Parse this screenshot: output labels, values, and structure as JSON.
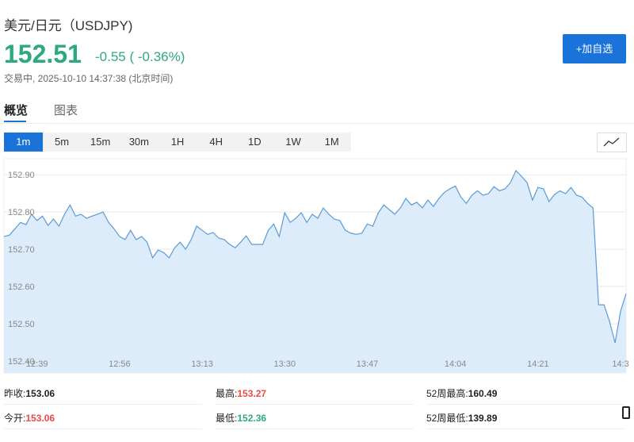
{
  "header": {
    "title": "美元/日元（USDJPY)",
    "price": "152.51",
    "change": "-0.55 ( -0.36%)",
    "status": "交易中, 2025-10-10 14:37:38 (北京时间)",
    "button": "+加自选"
  },
  "tabs": [
    "概览",
    "图表"
  ],
  "intervals": [
    "1m",
    "5m",
    "15m",
    "30m",
    "1H",
    "4H",
    "1D",
    "1W",
    "1M"
  ],
  "stats": [
    [
      {
        "label": "昨收:",
        "value": "153.06"
      },
      {
        "label": "最高:",
        "value": "153.27"
      },
      {
        "label": "52周最高:",
        "value": "160.49"
      }
    ],
    [
      {
        "label": "今开:",
        "value": "153.06"
      },
      {
        "label": "最低:",
        "value": "152.36"
      },
      {
        "label": "52周最低:",
        "value": "139.89"
      }
    ]
  ],
  "chart_data": {
    "type": "area",
    "color": "#5b9bd5",
    "grid": true,
    "ylim": [
      152.368,
      152.943
    ],
    "yticks": [
      {
        "value": 152.4,
        "label": "152.40"
      },
      {
        "value": 152.5,
        "label": "152.50"
      },
      {
        "value": 152.6,
        "label": "152.60"
      },
      {
        "value": 152.7,
        "label": "152.70"
      },
      {
        "value": 152.8,
        "label": "152.80"
      },
      {
        "value": 152.9,
        "label": "152.90"
      }
    ],
    "categories": [
      null,
      null,
      null,
      null,
      null,
      null,
      "12:39",
      null,
      null,
      null,
      null,
      null,
      null,
      null,
      null,
      null,
      null,
      null,
      null,
      null,
      null,
      "12:56",
      null,
      null,
      null,
      null,
      null,
      null,
      null,
      null,
      null,
      null,
      null,
      null,
      null,
      null,
      "13:13",
      null,
      null,
      null,
      null,
      null,
      null,
      null,
      null,
      null,
      null,
      null,
      null,
      null,
      null,
      "13:30",
      null,
      null,
      null,
      null,
      null,
      null,
      null,
      null,
      null,
      null,
      null,
      null,
      null,
      null,
      "13:47",
      null,
      null,
      null,
      null,
      null,
      null,
      null,
      null,
      null,
      null,
      null,
      null,
      null,
      null,
      null,
      "14:04",
      null,
      null,
      null,
      null,
      null,
      null,
      null,
      null,
      null,
      null,
      null,
      null,
      null,
      null,
      "14:21",
      null,
      null,
      null,
      null,
      null,
      null,
      null,
      null,
      null,
      null,
      null,
      null,
      null,
      null,
      "14:3",
      null
    ],
    "values": [
      152.734,
      152.738,
      152.755,
      152.772,
      152.766,
      152.794,
      152.777,
      152.789,
      152.764,
      152.781,
      152.762,
      152.794,
      152.819,
      152.789,
      152.794,
      152.783,
      152.789,
      152.794,
      152.8,
      152.772,
      152.755,
      152.734,
      152.726,
      152.751,
      152.726,
      152.734,
      152.719,
      152.677,
      152.698,
      152.691,
      152.677,
      152.704,
      152.719,
      152.7,
      152.726,
      152.762,
      152.751,
      152.74,
      152.745,
      152.73,
      152.726,
      152.713,
      152.704,
      152.719,
      152.736,
      152.713,
      152.713,
      152.713,
      152.751,
      152.768,
      152.734,
      152.798,
      152.772,
      152.783,
      152.798,
      152.772,
      152.794,
      152.783,
      152.811,
      152.794,
      152.781,
      152.777,
      152.751,
      152.743,
      152.74,
      152.743,
      152.768,
      152.762,
      152.798,
      152.819,
      152.806,
      152.794,
      152.811,
      152.836,
      152.819,
      152.826,
      152.811,
      152.832,
      152.815,
      152.836,
      152.853,
      152.862,
      152.87,
      152.84,
      152.823,
      152.845,
      152.857,
      152.845,
      152.849,
      152.868,
      152.857,
      152.862,
      152.879,
      152.911,
      152.896,
      152.879,
      152.832,
      152.866,
      152.862,
      152.828,
      152.847,
      152.857,
      152.849,
      152.866,
      152.845,
      152.84,
      152.823,
      152.811,
      152.551,
      152.551,
      152.506,
      152.449,
      152.534,
      152.581
    ]
  }
}
